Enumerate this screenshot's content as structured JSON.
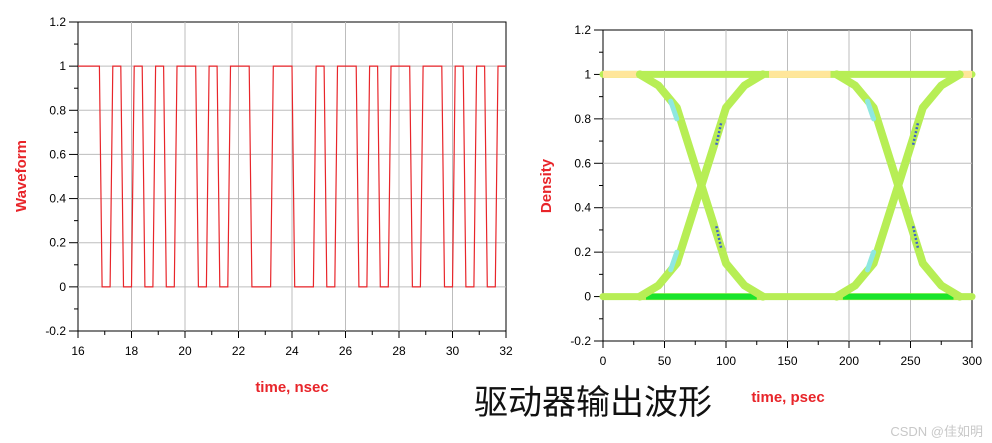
{
  "caption": "驱动器输出波形",
  "watermark": "CSDN @佳如明",
  "colors": {
    "waveform": "#e8252a",
    "eye_main": "#b7ee55",
    "eye_top_rail": "#ffe69a",
    "eye_bottom_rail": "#19e42c",
    "eye_cyan": "#8ee8e0",
    "eye_blue": "#3f63c8",
    "axis_title": "#e8252a",
    "grid": "#bdbdbd"
  },
  "chart_data": [
    {
      "type": "line",
      "xlabel": "time, nsec",
      "ylabel": "Waveform",
      "xlim": [
        16,
        32
      ],
      "ylim": [
        -0.2,
        1.2
      ],
      "xticks": [
        16,
        18,
        20,
        22,
        24,
        26,
        28,
        30,
        32
      ],
      "yticks": [
        -0.2,
        0.0,
        0.2,
        0.4,
        0.6,
        0.8,
        1.0,
        1.2
      ],
      "grid": true,
      "unit_interval_ns": 0.4,
      "edge_time_ns": 0.1,
      "start_time_ns": 16.0,
      "bits": [
        1,
        1,
        0,
        1,
        0,
        1,
        0,
        1,
        0,
        1,
        1,
        0,
        1,
        0,
        1,
        1,
        0,
        0,
        1,
        1,
        0,
        0,
        1,
        0,
        1,
        1,
        0,
        1,
        0,
        1,
        1,
        0,
        1,
        1,
        0,
        1,
        0,
        1,
        0,
        1
      ]
    },
    {
      "type": "line",
      "xlabel": "time, psec",
      "ylabel": "Density",
      "xlim": [
        0,
        300
      ],
      "ylim": [
        -0.2,
        1.2
      ],
      "xticks": [
        0,
        50,
        100,
        150,
        200,
        250,
        300
      ],
      "yticks": [
        -0.2,
        0.0,
        0.2,
        0.4,
        0.6,
        0.8,
        1.0,
        1.2
      ],
      "grid": true,
      "crossing_times_ps": [
        80,
        240
      ],
      "high_rail": [
        [
          0,
          1.0
        ],
        [
          30,
          1.0
        ],
        [
          130,
          1.0
        ],
        [
          190,
          1.0
        ],
        [
          290,
          1.0
        ],
        [
          300,
          1.0
        ]
      ],
      "low_rail": [
        [
          0,
          0.0
        ],
        [
          30,
          0.0
        ],
        [
          130,
          0.0
        ],
        [
          190,
          0.0
        ],
        [
          290,
          0.0
        ],
        [
          300,
          0.0
        ]
      ],
      "falling_edges": [
        [
          [
            30,
            1.0
          ],
          [
            45,
            0.95
          ],
          [
            60,
            0.85
          ],
          [
            80,
            0.5
          ],
          [
            100,
            0.15
          ],
          [
            115,
            0.05
          ],
          [
            130,
            0.0
          ]
        ],
        [
          [
            190,
            1.0
          ],
          [
            205,
            0.95
          ],
          [
            220,
            0.85
          ],
          [
            240,
            0.5
          ],
          [
            260,
            0.15
          ],
          [
            275,
            0.05
          ],
          [
            290,
            0.0
          ]
        ]
      ],
      "rising_edges": [
        [
          [
            30,
            0.0
          ],
          [
            45,
            0.05
          ],
          [
            60,
            0.15
          ],
          [
            80,
            0.5
          ],
          [
            100,
            0.85
          ],
          [
            115,
            0.95
          ],
          [
            130,
            1.0
          ]
        ],
        [
          [
            190,
            0.0
          ],
          [
            205,
            0.05
          ],
          [
            220,
            0.15
          ],
          [
            240,
            0.5
          ],
          [
            260,
            0.85
          ],
          [
            275,
            0.95
          ],
          [
            290,
            1.0
          ]
        ]
      ]
    }
  ]
}
